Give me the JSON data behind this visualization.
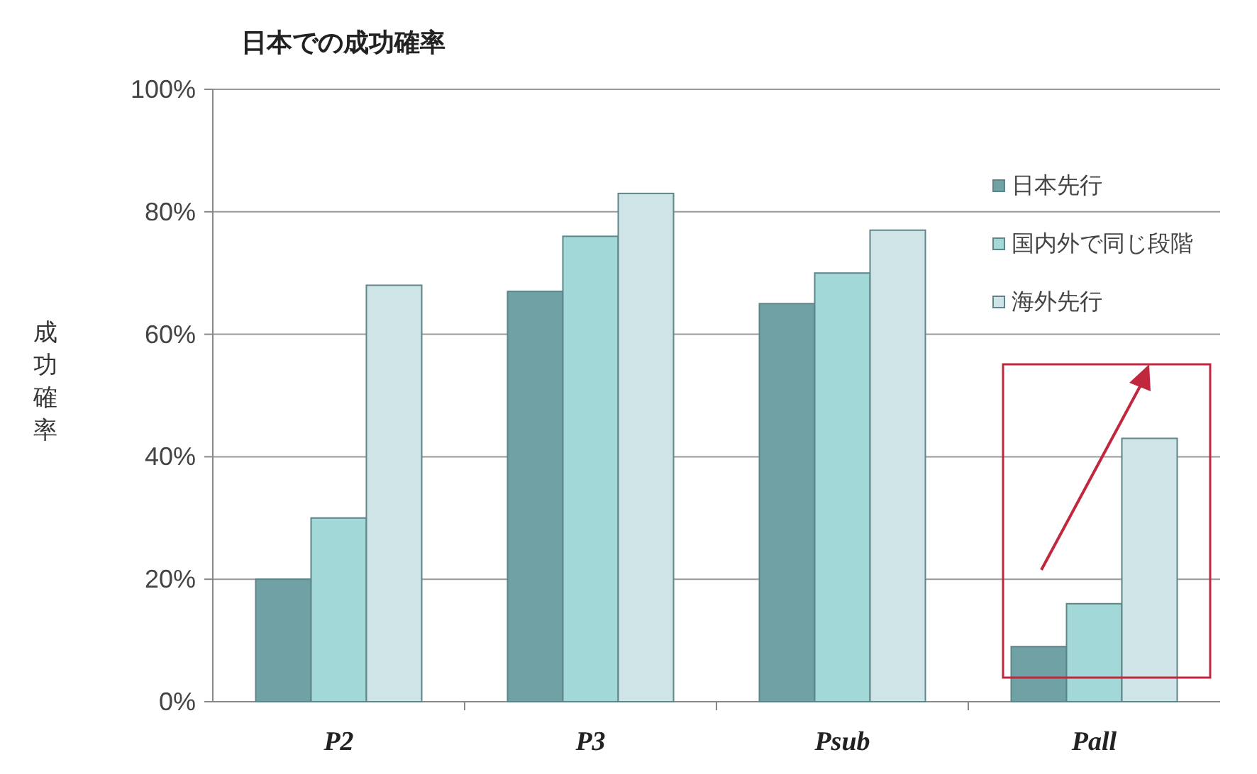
{
  "chart_data": {
    "type": "bar",
    "title": "日本での成功確率",
    "ylabel": "成功確率",
    "categories": [
      "P2",
      "P3",
      "Psub",
      "Pall"
    ],
    "series": [
      {
        "name": "日本先行",
        "color": "#6fa1a5",
        "values": [
          20,
          67,
          65,
          9
        ]
      },
      {
        "name": "国内外で同じ段階",
        "color": "#a3d8d9",
        "values": [
          30,
          76,
          70,
          16
        ]
      },
      {
        "name": "海外先行",
        "color": "#cfe4e7",
        "values": [
          68,
          83,
          77,
          43
        ]
      }
    ],
    "ylim": [
      0,
      100
    ],
    "yticks": [
      {
        "value": 0,
        "label": "0%"
      },
      {
        "value": 20,
        "label": "20%"
      },
      {
        "value": 40,
        "label": "40%"
      },
      {
        "value": 60,
        "label": "60%"
      },
      {
        "value": 80,
        "label": "80%"
      },
      {
        "value": 100,
        "label": "100%"
      }
    ],
    "grid": "y",
    "legend": "right"
  }
}
